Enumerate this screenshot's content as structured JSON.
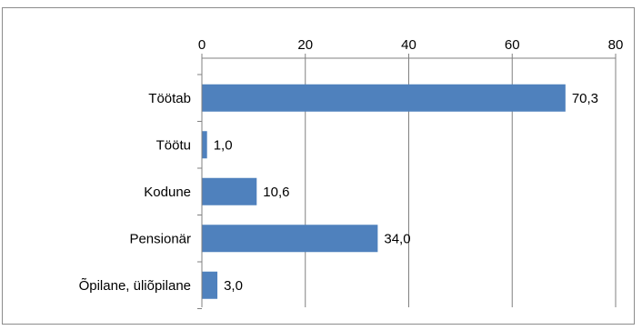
{
  "chart_data": {
    "type": "bar",
    "orientation": "horizontal",
    "title": "",
    "xlabel": "",
    "ylabel": "",
    "categories": [
      "Töötab",
      "Töötu",
      "Kodune",
      "Pensionär",
      "Õpilane, üliõpilane"
    ],
    "values": [
      70.3,
      1.0,
      10.6,
      34.0,
      3.0
    ],
    "value_labels": [
      "70,3",
      "1,0",
      "10,6",
      "34,0",
      "3,0"
    ],
    "xlim": [
      0,
      80
    ],
    "ticks": [
      0,
      20,
      40,
      60,
      80
    ],
    "tick_labels": [
      "0",
      "20",
      "40",
      "60",
      "80"
    ],
    "axis_position": "top",
    "grid": true,
    "bar_color": "#4f81bd",
    "grid_color": "#808080"
  }
}
